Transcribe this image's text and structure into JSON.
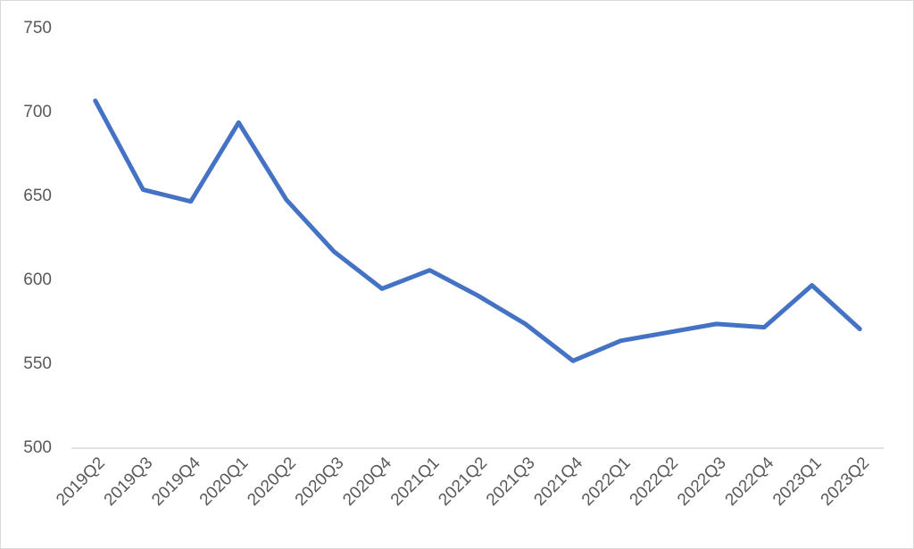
{
  "chart_data": {
    "type": "line",
    "categories": [
      "2019Q2",
      "2019Q3",
      "2019Q4",
      "2020Q1",
      "2020Q2",
      "2020Q3",
      "2020Q4",
      "2021Q1",
      "2021Q2",
      "2021Q3",
      "2021Q4",
      "2022Q1",
      "2022Q2",
      "2022Q3",
      "2022Q4",
      "2023Q1",
      "2023Q2"
    ],
    "series": [
      {
        "color": "#4472c4",
        "values": [
          707,
          654,
          647,
          694,
          648,
          617,
          595,
          606,
          591,
          574,
          552,
          564,
          569,
          574,
          572,
          597,
          571
        ]
      }
    ],
    "ylim": [
      500,
      750
    ],
    "yticks": [
      500,
      550,
      600,
      650,
      700,
      750
    ],
    "grid": false
  }
}
